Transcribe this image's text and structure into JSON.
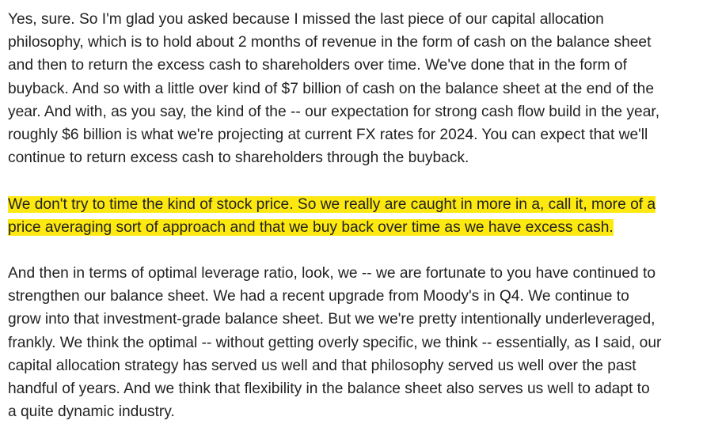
{
  "paragraphs": [
    {
      "highlighted": false,
      "lines": [
        "Yes, sure. So I'm glad you asked because I missed the last piece of our capital allocation",
        "philosophy, which is to hold about 2 months of revenue in the form of cash on the balance sheet",
        "and then to return the excess cash to shareholders over time. We've done that in the form of",
        "buyback. And so with a little over kind of $7 billion of cash on the balance sheet at the end of the",
        "year. And with, as you say, the kind of the -- our expectation for strong cash flow build in the year,",
        "roughly $6 billion is what we're projecting at current FX rates for 2024. You can expect that we'll",
        "continue to return excess cash to shareholders through the buyback."
      ]
    },
    {
      "highlighted": true,
      "highlight_color": "#fde910",
      "lines": [
        "We don't try to time the kind of stock price. So we really are caught in more in a, call it, more of a",
        "price averaging sort of approach and that we buy back over time as we have excess cash."
      ]
    },
    {
      "highlighted": false,
      "lines": [
        "And then in terms of optimal leverage ratio, look, we -- we are fortunate to you have continued to",
        "strengthen our balance sheet. We had a recent upgrade from Moody's in Q4. We continue to",
        "grow into that investment-grade balance sheet. But we we're pretty intentionally underleveraged,",
        "frankly. We think the optimal -- without getting overly specific, we think -- essentially, as I said, our",
        "capital allocation strategy has served us well and that philosophy served us well over the past",
        "handful of years. And we think that flexibility in the balance sheet also serves us well to adapt to",
        "a quite dynamic industry."
      ]
    }
  ]
}
